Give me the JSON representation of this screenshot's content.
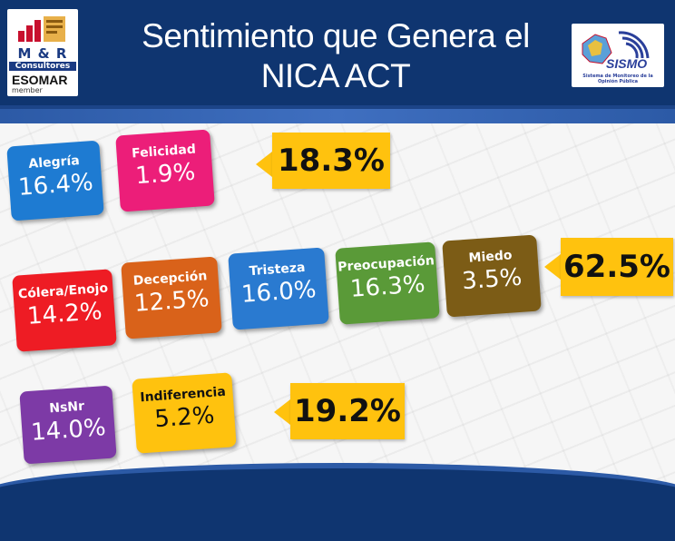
{
  "header": {
    "title_line1": "Sentimiento que Genera el",
    "title_line2": "NICA ACT"
  },
  "logo_left": {
    "brand": "M & R",
    "line2": "Consultores",
    "line3": "ESOMAR",
    "line4": "member"
  },
  "logo_right": {
    "brand": "SISMO",
    "subtitle": "Sistema de Monitoreo de la Opinión Pública"
  },
  "groups": [
    {
      "total": "18.3%",
      "items": [
        {
          "label": "Alegría",
          "value": "16.4%",
          "color": "#1e7bd2"
        },
        {
          "label": "Felicidad",
          "value": "1.9%",
          "color": "#ec1e79"
        }
      ]
    },
    {
      "total": "62.5%",
      "items": [
        {
          "label": "Cólera/Enojo",
          "value": "14.2%",
          "color": "#ee1c24"
        },
        {
          "label": "Decepción",
          "value": "12.5%",
          "color": "#d9621a"
        },
        {
          "label": "Tristeza",
          "value": "16.0%",
          "color": "#2a7ad0"
        },
        {
          "label": "Preocupación",
          "value": "16.3%",
          "color": "#5a9a38"
        },
        {
          "label": "Miedo",
          "value": "3.5%",
          "color": "#7c5c16"
        }
      ]
    },
    {
      "total": "19.2%",
      "items": [
        {
          "label": "NsNr",
          "value": "14.0%",
          "color": "#7d3aa6"
        },
        {
          "label": "Indiferencia",
          "value": "5.2%",
          "color": "#ffc20e"
        }
      ]
    }
  ]
}
